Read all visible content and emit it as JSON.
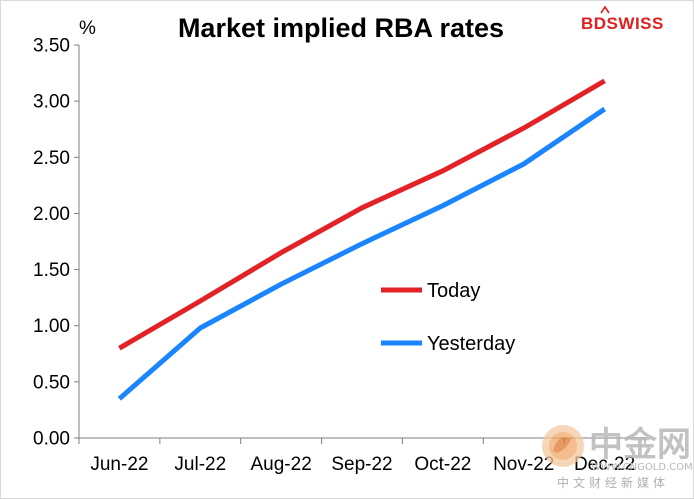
{
  "brand": {
    "logo_text": "BDSWISS",
    "logo_color": "#e02020"
  },
  "watermark": {
    "logo_text": "中金网",
    "url_text": "WWW.CNGOLD.COM",
    "sub_text": "中文财经新媒体"
  },
  "chart_data": {
    "type": "line",
    "title": "Market implied RBA rates",
    "ylabel": "%",
    "xlabel": "",
    "categories": [
      "Jun-22",
      "Jul-22",
      "Aug-22",
      "Sep-22",
      "Oct-22",
      "Nov-22",
      "Dec-22"
    ],
    "ylim": [
      0,
      3.5
    ],
    "yticks": [
      "0.00",
      "0.50",
      "1.00",
      "1.50",
      "2.00",
      "2.50",
      "3.00",
      "3.50"
    ],
    "grid": false,
    "legend_position": "center-right",
    "series": [
      {
        "name": "Today",
        "color": "#e32227",
        "values": [
          0.8,
          1.22,
          1.65,
          2.05,
          2.38,
          2.76,
          3.18
        ]
      },
      {
        "name": "Yesterday",
        "color": "#1a85ff",
        "values": [
          0.35,
          0.98,
          1.37,
          1.73,
          2.07,
          2.44,
          2.93
        ]
      }
    ]
  }
}
